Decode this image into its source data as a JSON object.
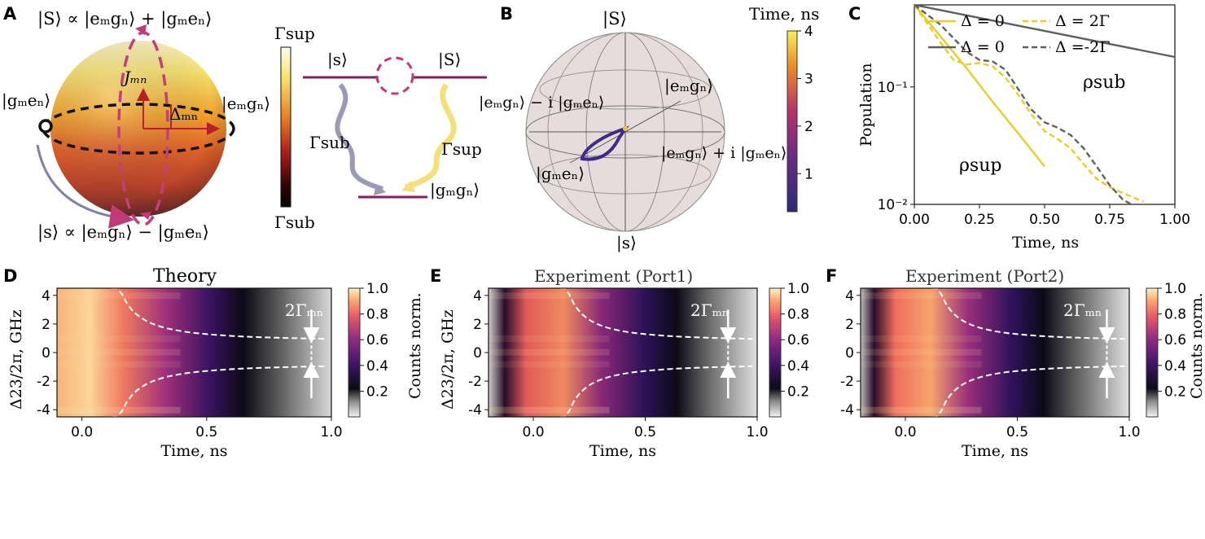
{
  "panels": {
    "A": {
      "label": "A",
      "ket_plus": "|S⟩ ∝ |eₘgₙ⟩ + |gₘeₙ⟩",
      "ket_minus": "|s⟩ ∝ |eₘgₙ⟩ − |gₘeₙ⟩",
      "ket_left": "|gₘeₙ⟩",
      "ket_right": "|eₘgₙ⟩",
      "coupling": "Jₘₙ",
      "detuning": "Δₘₙ",
      "cbar_top": "Γsup",
      "cbar_bottom": "Γsub",
      "level_s": "|s⟩",
      "level_S": "|S⟩",
      "level_g": "|gₘgₙ⟩",
      "rate_sub": "Γsub",
      "rate_sup": "Γsup"
    },
    "B": {
      "label": "B",
      "top": "|S⟩",
      "bottom": "|s⟩",
      "left": "|gₘeₙ⟩",
      "right": "|eₘgₙ⟩",
      "minus_i": "|eₘgₙ⟩ − i |gₘeₙ⟩",
      "plus_i": "|eₘgₙ⟩ + i |gₘeₙ⟩",
      "cbar_title": "Time, ns",
      "cbar_ticks": [
        "1",
        "2",
        "3",
        "4"
      ]
    },
    "C": {
      "label": "C",
      "ylabel": "Population",
      "xlabel": "Time, ns",
      "legend": [
        "Δ = 0",
        "Δ = 2Γ",
        "Δ = 0",
        "Δ =-2Γ"
      ],
      "rho_sub": "ρsub",
      "rho_sup": "ρsup"
    },
    "D": {
      "label": "D",
      "title": "Theory",
      "cbar_label": "Counts norm.",
      "marker": "2Γₘₙ"
    },
    "E": {
      "label": "E",
      "title": "Experiment (Port1)",
      "marker": "2Γₘₙ"
    },
    "F": {
      "label": "F",
      "title": "Experiment (Port2)",
      "cbar_label": "Counts norm.",
      "marker": "2Γₘₙ"
    }
  },
  "colors": {
    "yellow": "#e8cc2a",
    "gray": "#606060",
    "purple": "#8b1d5c",
    "lightblue": "#9a9ab8"
  },
  "chart_data": [
    {
      "type": "line",
      "panel": "C",
      "xlabel": "Time, ns",
      "ylabel": "Population",
      "xlim": [
        0,
        1
      ],
      "ylim": [
        0.01,
        0.5
      ],
      "yscale": "log",
      "xticks": [
        "0.00",
        "0.25",
        "0.50",
        "0.75",
        "1.00"
      ],
      "yticks": [
        "10⁻²",
        "10⁻¹"
      ],
      "legend_position": "top",
      "series": [
        {
          "name": "Δ = 0",
          "color": "#e8cc2a",
          "style": "solid",
          "x": [
            0,
            0.1,
            0.2,
            0.3,
            0.4,
            0.5
          ],
          "y": [
            0.5,
            0.27,
            0.145,
            0.075,
            0.04,
            0.021
          ]
        },
        {
          "name": "Δ = 2Γ",
          "color": "#e8cc2a",
          "style": "dashed",
          "x": [
            0,
            0.1,
            0.15,
            0.2,
            0.25,
            0.3,
            0.35,
            0.4,
            0.45,
            0.5,
            0.55,
            0.6,
            0.65,
            0.7,
            0.75,
            0.8,
            0.88
          ],
          "y": [
            0.5,
            0.24,
            0.17,
            0.155,
            0.16,
            0.15,
            0.12,
            0.085,
            0.058,
            0.042,
            0.036,
            0.03,
            0.022,
            0.0165,
            0.014,
            0.0125,
            0.0105
          ]
        },
        {
          "name": "Δ = 0",
          "color": "#606060",
          "style": "solid",
          "x": [
            0,
            1
          ],
          "y": [
            0.5,
            0.18
          ]
        },
        {
          "name": "Δ =-2Γ",
          "color": "#606060",
          "style": "dashed",
          "x": [
            0,
            0.1,
            0.2,
            0.25,
            0.3,
            0.35,
            0.4,
            0.45,
            0.5,
            0.55,
            0.6,
            0.65,
            0.7,
            0.75,
            0.8,
            0.84
          ],
          "y": [
            0.5,
            0.34,
            0.2,
            0.17,
            0.165,
            0.14,
            0.095,
            0.064,
            0.05,
            0.045,
            0.039,
            0.03,
            0.021,
            0.0145,
            0.011,
            0.0098
          ]
        }
      ]
    },
    {
      "type": "heatmap",
      "panel": "D",
      "title": "Theory",
      "xlabel": "Time, ns",
      "ylabel": "Δ23/2π, GHz",
      "xlim": [
        -0.1,
        1.0
      ],
      "ylim": [
        -4.5,
        4.5
      ],
      "xticks": [
        "0.0",
        "0.5",
        "1.0"
      ],
      "yticks": [
        "-4",
        "-2",
        "0",
        "2",
        "4"
      ],
      "colorbar": {
        "label": "Counts norm.",
        "ticks": [
          "0.2",
          "0.4",
          "0.6",
          "0.8",
          "1.0"
        ],
        "range": [
          0,
          1
        ]
      }
    },
    {
      "type": "heatmap",
      "panel": "E",
      "title": "Experiment (Port1)",
      "xlabel": "Time, ns",
      "ylabel": "Δ23/2π, GHz",
      "xlim": [
        -0.2,
        1.0
      ],
      "ylim": [
        -4.5,
        4.5
      ],
      "xticks": [
        "0.0",
        "0.5",
        "1.0"
      ],
      "yticks": [
        "-4",
        "-2",
        "0",
        "2",
        "4"
      ],
      "colorbar": {
        "ticks": [
          "0.2",
          "0.4",
          "0.6",
          "0.8",
          "1.0"
        ],
        "range": [
          0,
          1
        ]
      }
    },
    {
      "type": "heatmap",
      "panel": "F",
      "title": "Experiment (Port2)",
      "xlabel": "Time, ns",
      "ylabel": "",
      "xlim": [
        -0.2,
        1.0
      ],
      "ylim": [
        -4.5,
        4.5
      ],
      "xticks": [
        "0.0",
        "0.5",
        "1.0"
      ],
      "yticks": [
        "-4",
        "-2",
        "0",
        "2",
        "4"
      ],
      "colorbar": {
        "label": "Counts norm.",
        "ticks": [
          "0.2",
          "0.4",
          "0.6",
          "0.8",
          "1.0"
        ],
        "range": [
          0,
          1
        ]
      }
    }
  ]
}
